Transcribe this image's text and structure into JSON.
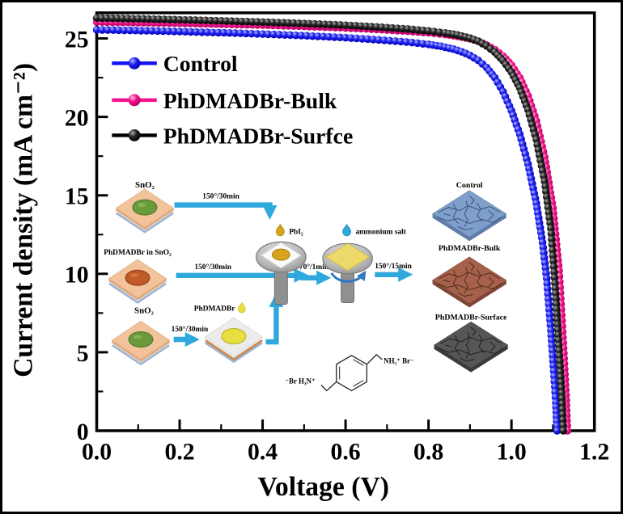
{
  "figure": {
    "background": "#ffffff",
    "border_color": "#000000"
  },
  "chart_data": {
    "type": "line",
    "title": "",
    "xlabel": "Voltage (V)",
    "ylabel": "Current density (mA cm⁻²)",
    "xlim": [
      0,
      1.2
    ],
    "ylim": [
      0,
      26.6
    ],
    "x_ticks": [
      0.0,
      0.2,
      0.4,
      0.6,
      0.8,
      1.0,
      1.2
    ],
    "x_tick_labels": [
      "0.0",
      "0.2",
      "0.4",
      "0.6",
      "0.8",
      "1.0",
      "1.2"
    ],
    "y_ticks": [
      0,
      5,
      10,
      15,
      20,
      25
    ],
    "y_tick_labels": [
      "0",
      "5",
      "10",
      "15",
      "20",
      "25"
    ],
    "grid": false,
    "legend_position": "upper-left",
    "series": [
      {
        "name": "Control",
        "color": "#1414F5",
        "marker": "sphere",
        "v": [
          0,
          0.04,
          0.08,
          0.12,
          0.16,
          0.2,
          0.24,
          0.28,
          0.32,
          0.36,
          0.4,
          0.44,
          0.48,
          0.52,
          0.56,
          0.6,
          0.64,
          0.68,
          0.72,
          0.76,
          0.8,
          0.83,
          0.86,
          0.88,
          0.9,
          0.92,
          0.94,
          0.96,
          0.98,
          1.0,
          1.02,
          1.04,
          1.06,
          1.075,
          1.085,
          1.095,
          1.102,
          1.107,
          1.11
        ],
        "j": [
          25.55,
          25.53,
          25.51,
          25.49,
          25.47,
          25.44,
          25.41,
          25.38,
          25.35,
          25.32,
          25.28,
          25.24,
          25.2,
          25.15,
          25.1,
          25.05,
          24.98,
          24.91,
          24.83,
          24.74,
          24.62,
          24.5,
          24.32,
          24.15,
          23.92,
          23.6,
          23.15,
          22.5,
          21.6,
          20.4,
          18.9,
          17.0,
          14.5,
          12.0,
          9.7,
          6.4,
          3.8,
          1.8,
          0.0
        ]
      },
      {
        "name": "PhDMADBr-Bulk",
        "color": "#F5128C",
        "marker": "sphere",
        "v": [
          0,
          0.05,
          0.1,
          0.15,
          0.2,
          0.25,
          0.3,
          0.35,
          0.4,
          0.45,
          0.5,
          0.55,
          0.6,
          0.65,
          0.7,
          0.75,
          0.8,
          0.84,
          0.87,
          0.9,
          0.92,
          0.94,
          0.96,
          0.98,
          1.0,
          1.02,
          1.04,
          1.06,
          1.08,
          1.1,
          1.115,
          1.125,
          1.131,
          1.135
        ],
        "j": [
          26.05,
          26.03,
          26.01,
          25.99,
          25.97,
          25.94,
          25.91,
          25.88,
          25.85,
          25.81,
          25.77,
          25.72,
          25.67,
          25.61,
          25.54,
          25.46,
          25.36,
          25.26,
          25.14,
          24.98,
          24.82,
          24.58,
          24.28,
          23.88,
          23.3,
          22.5,
          21.35,
          19.75,
          17.45,
          14.2,
          10.2,
          5.6,
          2.6,
          0.0
        ]
      },
      {
        "name": "PhDMADBr-Surfce",
        "color": "#000000",
        "marker": "sphere",
        "v": [
          0,
          0.05,
          0.1,
          0.15,
          0.2,
          0.25,
          0.3,
          0.35,
          0.4,
          0.45,
          0.5,
          0.55,
          0.6,
          0.65,
          0.7,
          0.75,
          0.8,
          0.84,
          0.87,
          0.9,
          0.92,
          0.94,
          0.96,
          0.98,
          1.0,
          1.02,
          1.04,
          1.06,
          1.08,
          1.095,
          1.105,
          1.115,
          1.121,
          1.125
        ],
        "j": [
          26.3,
          26.28,
          26.25,
          26.22,
          26.19,
          26.16,
          26.12,
          26.08,
          26.04,
          26.0,
          25.95,
          25.9,
          25.84,
          25.77,
          25.69,
          25.6,
          25.48,
          25.35,
          25.22,
          25.02,
          24.82,
          24.52,
          24.12,
          23.58,
          22.85,
          21.85,
          20.45,
          18.55,
          15.9,
          12.9,
          9.4,
          5.1,
          2.4,
          0.0
        ]
      }
    ]
  },
  "inset": {
    "labels": {
      "sno2_top": "SnO₂",
      "phdmadbr_in_sno2": "PhDMADBr in SnO₂",
      "sno2_bottom": "SnO₂",
      "phdmadbr": "PhDMADBr",
      "pbi2": "PbI₂",
      "ammonium_salt": "ammonium salt",
      "film_control": "Control",
      "film_bulk": "PhDMADBr-Bulk",
      "film_surface": "PhDMADBr-Surface",
      "chem_left": "⁻Br H₃N⁺",
      "chem_right": "NH₃⁺ Br⁻"
    },
    "arrow_labels": [
      "150°/30min",
      "150°/30min",
      "150°/30min",
      "70°/1min",
      "150°/15min"
    ],
    "colors": {
      "arrow": "#2FA8DC",
      "film_control": "#7E9FCB",
      "film_bulk": "#A5614A",
      "film_surface": "#565656",
      "substrate_top": "#F2C39B",
      "sno2_dot": "#6B9A3A",
      "doped_dot": "#C05A28",
      "perovskite_dot": "#E8D84A",
      "pbi2_drop": "#D9A41C",
      "salt_drop": "#2FA8DC"
    }
  }
}
